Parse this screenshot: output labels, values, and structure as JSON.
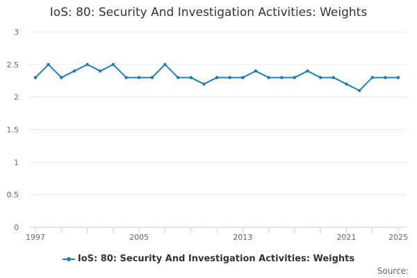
{
  "chart_data": {
    "type": "line",
    "title": "IoS: 80: Security And Investigation Activities: Weights",
    "xlabel": "",
    "ylabel": "",
    "xlim": [
      1997,
      2025
    ],
    "ylim": [
      0,
      3
    ],
    "yticks": [
      0,
      0.5,
      1,
      1.5,
      2,
      2.5,
      3
    ],
    "xtick_labels": [
      1997,
      2005,
      2013,
      2021,
      2025
    ],
    "grid": true,
    "legend_position": "bottom",
    "color": "#1f7fb5",
    "series": [
      {
        "name": "IoS: 80: Security And Investigation Activities: Weights",
        "x": [
          1997,
          1998,
          1999,
          2000,
          2001,
          2002,
          2003,
          2004,
          2005,
          2006,
          2007,
          2008,
          2009,
          2010,
          2011,
          2012,
          2013,
          2014,
          2015,
          2016,
          2017,
          2018,
          2019,
          2020,
          2021,
          2022,
          2023,
          2024,
          2025
        ],
        "values": [
          2.3,
          2.5,
          2.3,
          2.4,
          2.5,
          2.4,
          2.5,
          2.3,
          2.3,
          2.3,
          2.5,
          2.3,
          2.3,
          2.2,
          2.3,
          2.3,
          2.3,
          2.4,
          2.3,
          2.3,
          2.3,
          2.4,
          2.3,
          2.3,
          2.2,
          2.1,
          2.3,
          2.3,
          2.3
        ]
      }
    ]
  },
  "source_label": "Source:"
}
